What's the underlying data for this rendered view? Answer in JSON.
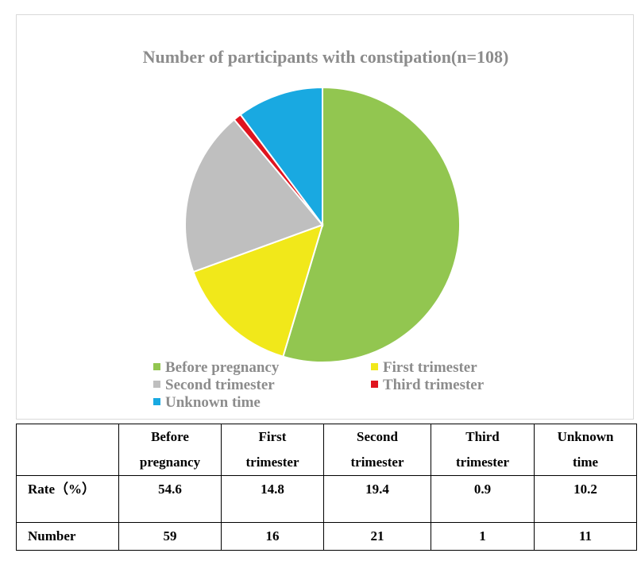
{
  "chart_data": {
    "type": "pie",
    "title": "Number of participants with constipation(n=108)",
    "labels": [
      "Before pregnancy",
      "First trimester",
      "Second trimester",
      "Third trimester",
      "Unknown time"
    ],
    "values": [
      59,
      16,
      21,
      1,
      11
    ],
    "colors": [
      "#92c650",
      "#f1e81a",
      "#bfbfbf",
      "#e0141f",
      "#19a9e1"
    ],
    "legend_position": "bottom"
  },
  "table": {
    "header": [
      "",
      "Before pregnancy",
      "First trimester",
      "Second trimester",
      "Third trimester",
      "Unknown time"
    ],
    "rows": [
      [
        "Rate（%）",
        "54.6",
        "14.8",
        "19.4",
        "0.9",
        "10.2"
      ],
      [
        "Number",
        "59",
        "16",
        "21",
        "1",
        "11"
      ]
    ]
  }
}
